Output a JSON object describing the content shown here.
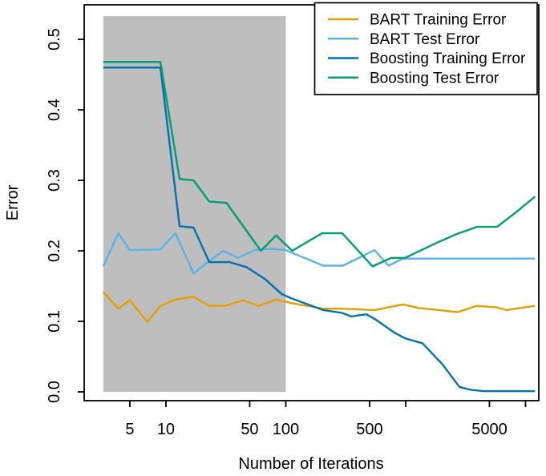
{
  "figure": {
    "background": "#ffffff",
    "frame_color": "#000000",
    "text_color": "#000000"
  },
  "chart_data": {
    "type": "line",
    "title": "",
    "xlabel": "Number of Iterations",
    "ylabel": "Error",
    "x_scale": "log10",
    "xlim": [
      2.08,
      12900
    ],
    "ylim": [
      -0.0125,
      0.549
    ],
    "grid": false,
    "x_ticks": [
      {
        "value": 5,
        "label": "5"
      },
      {
        "value": 10,
        "label": "10"
      },
      {
        "value": 50,
        "label": "50"
      },
      {
        "value": 100,
        "label": "100"
      },
      {
        "value": 500,
        "label": "500"
      },
      {
        "value": 1000,
        "label": ""
      },
      {
        "value": 5000,
        "label": "5000"
      },
      {
        "value": 10000,
        "label": ""
      }
    ],
    "y_ticks": [
      {
        "value": 0.0,
        "label": "0.0"
      },
      {
        "value": 0.1,
        "label": "0.1"
      },
      {
        "value": 0.2,
        "label": "0.2"
      },
      {
        "value": 0.3,
        "label": "0.3"
      },
      {
        "value": 0.4,
        "label": "0.4"
      },
      {
        "value": 0.5,
        "label": "0.5"
      }
    ],
    "shaded_region": {
      "x_from": 3,
      "x_to": 100,
      "y_from": 0.0,
      "y_to": 0.533,
      "color": "#BEBEBE"
    },
    "legend": {
      "position": "top-right",
      "border": true,
      "fill": "#ffffff"
    },
    "series": [
      {
        "name": "BART Training Error",
        "color": "#E69F00",
        "x": [
          3,
          4,
          5,
          7,
          9,
          12,
          17,
          23,
          31,
          44,
          59,
          83,
          110,
          205,
          296,
          550,
          950,
          1280,
          1900,
          2700,
          3900,
          5700,
          6900,
          12000
        ],
        "y": [
          0.142,
          0.118,
          0.13,
          0.099,
          0.122,
          0.131,
          0.135,
          0.122,
          0.122,
          0.13,
          0.122,
          0.131,
          0.126,
          0.118,
          0.118,
          0.116,
          0.124,
          0.119,
          0.116,
          0.113,
          0.122,
          0.12,
          0.116,
          0.122
        ]
      },
      {
        "name": "BART Test Error",
        "color": "#56B4E9",
        "x": [
          3,
          4,
          5,
          9,
          12,
          17,
          22,
          30,
          40,
          55,
          75,
          100,
          205,
          300,
          550,
          720,
          950,
          12000
        ],
        "y": [
          0.178,
          0.225,
          0.201,
          0.202,
          0.225,
          0.168,
          0.183,
          0.2,
          0.19,
          0.201,
          0.203,
          0.201,
          0.179,
          0.179,
          0.201,
          0.179,
          0.189,
          0.189
        ]
      },
      {
        "name": "Boosting Training Error",
        "color": "#0072B2",
        "x": [
          3,
          9,
          13,
          17,
          23,
          34,
          47,
          67,
          92,
          110,
          205,
          296,
          350,
          470,
          557,
          805,
          985,
          1380,
          2030,
          2810,
          3480,
          4500,
          12000
        ],
        "y": [
          0.46,
          0.46,
          0.235,
          0.233,
          0.184,
          0.184,
          0.177,
          0.16,
          0.139,
          0.133,
          0.116,
          0.112,
          0.107,
          0.11,
          0.103,
          0.084,
          0.076,
          0.069,
          0.039,
          0.007,
          0.003,
          0.001,
          0.001
        ]
      },
      {
        "name": "Boosting Test Error",
        "color": "#009E73",
        "x": [
          3,
          9,
          13,
          17,
          23,
          32,
          62,
          83,
          113,
          200,
          296,
          530,
          758,
          988,
          1905,
          2690,
          3935,
          5790,
          8510,
          12000
        ],
        "y": [
          0.468,
          0.468,
          0.302,
          0.3,
          0.27,
          0.268,
          0.2,
          0.222,
          0.2,
          0.225,
          0.225,
          0.178,
          0.19,
          0.19,
          0.213,
          0.224,
          0.234,
          0.234,
          0.256,
          0.277
        ]
      }
    ]
  }
}
